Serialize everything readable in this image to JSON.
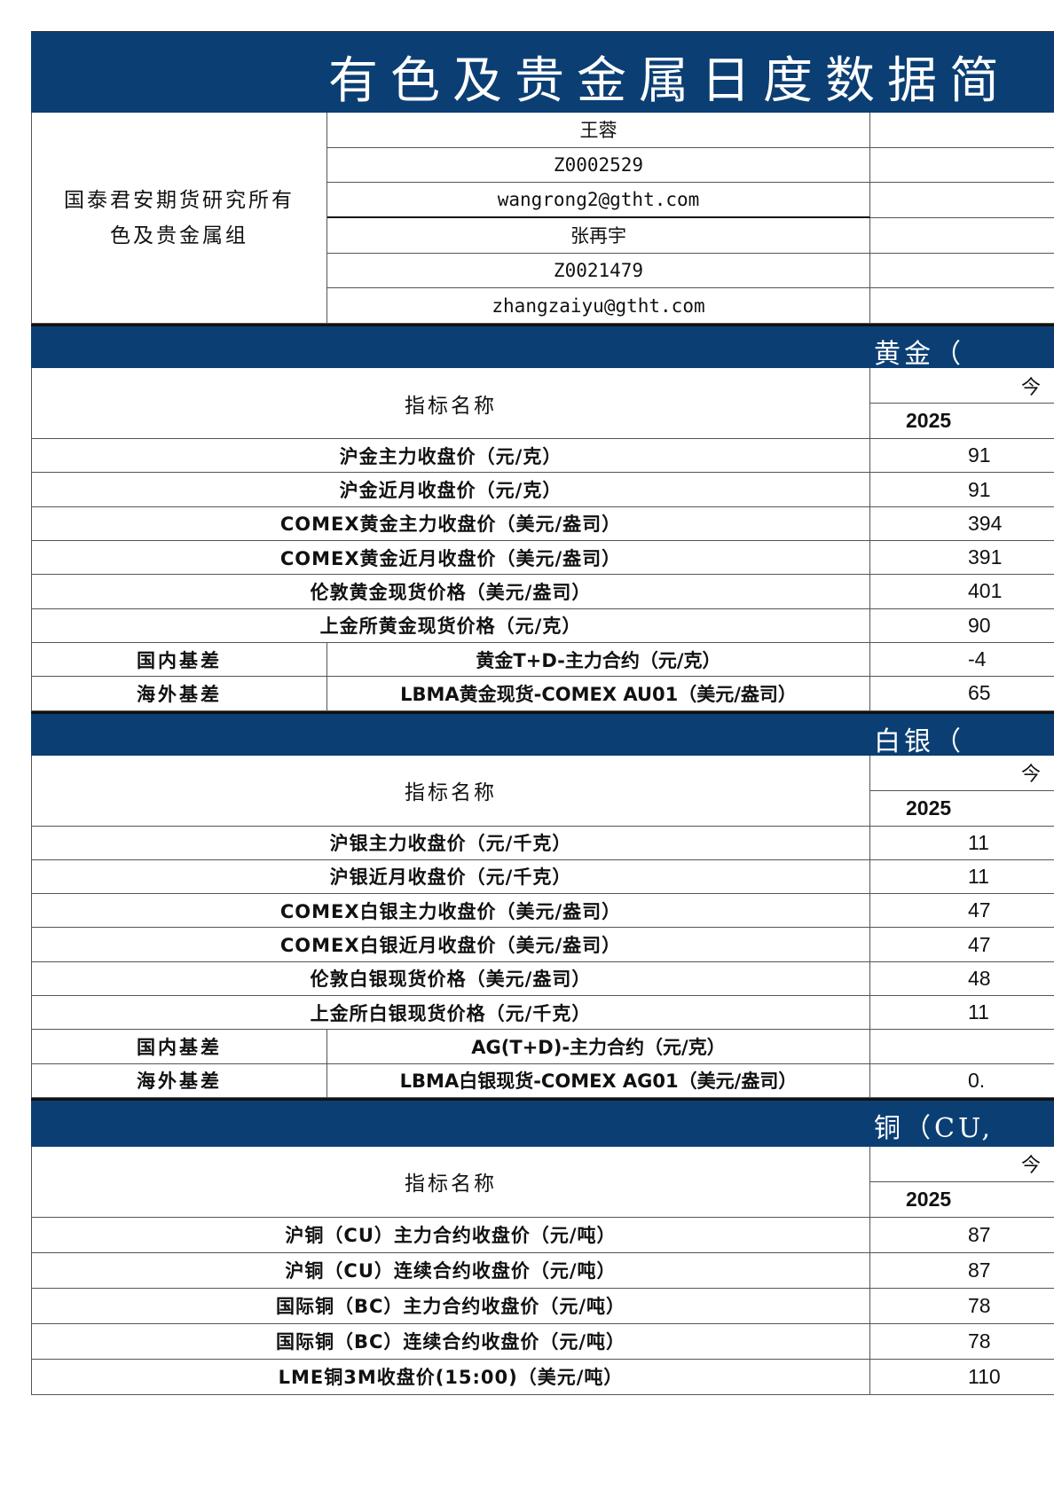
{
  "title": "有色及贵金属日度数据简",
  "info": {
    "org": [
      "国泰君安期货研究所有",
      "色及贵金属组"
    ],
    "analysts": [
      {
        "name": "王蓉",
        "id": "Z0002529",
        "email": "wangrong2@gtht.com"
      },
      {
        "name": "张再宇",
        "id": "Z0021479",
        "email": "zhangzaiyu@gtht.com"
      }
    ]
  },
  "colors": {
    "header_bg": "#0b3f74",
    "header_text": "#ffffff"
  },
  "sections": [
    {
      "title": "黄金（",
      "header": {
        "name": "指标名称",
        "today": "今",
        "date": "2025"
      },
      "rows": [
        {
          "label": "沪金主力收盘价（元/克）",
          "value": "91"
        },
        {
          "label": "沪金近月收盘价（元/克）",
          "value": "91"
        },
        {
          "label": "COMEX黄金主力收盘价（美元/盎司）",
          "value": "394"
        },
        {
          "label": "COMEX黄金近月收盘价（美元/盎司）",
          "value": "391"
        },
        {
          "label": "伦敦黄金现货价格（美元/盎司）",
          "value": "401"
        },
        {
          "label": "上金所黄金现货价格（元/克）",
          "value": "90"
        },
        {
          "group": "国内基差",
          "label": "黄金T+D-主力合约（元/克）",
          "value": "-4"
        },
        {
          "group": "海外基差",
          "label": "LBMA黄金现货-COMEX AU01（美元/盎司）",
          "value": "65"
        }
      ]
    },
    {
      "title": "白银（",
      "header": {
        "name": "指标名称",
        "today": "今",
        "date": "2025"
      },
      "rows": [
        {
          "label": "沪银主力收盘价（元/千克）",
          "value": "11"
        },
        {
          "label": "沪银近月收盘价（元/千克）",
          "value": "11"
        },
        {
          "label": "COMEX白银主力收盘价（美元/盎司）",
          "value": "47"
        },
        {
          "label": "COMEX白银近月收盘价（美元/盎司）",
          "value": "47"
        },
        {
          "label": "伦敦白银现货价格（美元/盎司）",
          "value": "48"
        },
        {
          "label": "上金所白银现货价格（元/千克）",
          "value": "11"
        },
        {
          "group": "国内基差",
          "label": "AG(T+D)-主力合约（元/克）",
          "value": ""
        },
        {
          "group": "海外基差",
          "label": "LBMA白银现货-COMEX AG01（美元/盎司）",
          "value": "0."
        }
      ]
    },
    {
      "title": "铜（CU,",
      "header": {
        "name": "指标名称",
        "today": "今",
        "date": "2025"
      },
      "rows": [
        {
          "label": "沪铜（CU）主力合约收盘价（元/吨）",
          "value": "87"
        },
        {
          "label": "沪铜（CU）连续合约收盘价（元/吨）",
          "value": "87"
        },
        {
          "label": "国际铜（BC）主力合约收盘价（元/吨）",
          "value": "78"
        },
        {
          "label": "国际铜（BC）连续合约收盘价（元/吨）",
          "value": "78"
        },
        {
          "label": "LME铜3M收盘价(15:00)（美元/吨）",
          "value": "110"
        }
      ]
    }
  ]
}
